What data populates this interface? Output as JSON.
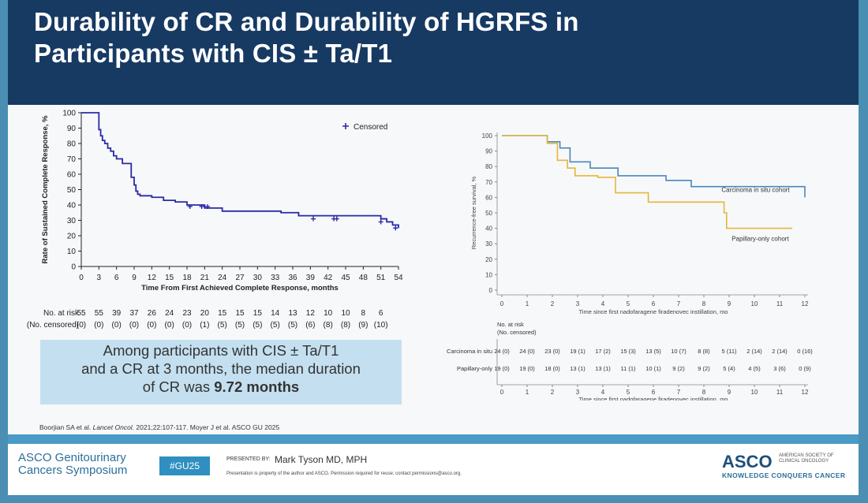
{
  "slide": {
    "title_line1": "Durability of CR and Durability of HGRFS in",
    "title_line2": "Participants with CIS ± Ta/T1",
    "summary": {
      "line1": "Among participants with CIS ± Ta/T1",
      "line2": "and a CR at 3 months, the median duration",
      "line3_prefix": "of CR was",
      "line3_bold": "9.72 months"
    },
    "reference": {
      "part1": "Boorjian SA et al.",
      "journal": "Lancet Oncol.",
      "part2": "2021;22:107-117. Moyer J et al. ASCO GU 2025"
    }
  },
  "footer": {
    "org_line1": "ASCO Genitourinary",
    "org_line2": "Cancers Symposium",
    "hashtag": "#GU25",
    "presented_by": "PRESENTED BY:",
    "presenter": "Mark Tyson MD, MPH",
    "permission": "Presentation is property of the author and ASCO. Permission required for reuse; contact permissions@asco.org.",
    "asco_word": "ASCO",
    "asco_sub": "AMERICAN SOCIETY OF CLINICAL ONCOLOGY",
    "asco_tagline": "KNOWLEDGE CONQUERS CANCER",
    "colors": {
      "header": "#173a63",
      "band": "#4a9bc7",
      "hashtag_bg": "#2e8fc0"
    }
  },
  "chart_data": [
    {
      "type": "line",
      "title": "",
      "xlabel": "Time From First Achieved Complete Response, months",
      "ylabel": "Rate of Sustained Complete Response, %",
      "xlim": [
        0,
        54
      ],
      "ylim": [
        0,
        100
      ],
      "x_ticks": [
        0,
        3,
        6,
        9,
        12,
        15,
        18,
        21,
        24,
        27,
        30,
        33,
        36,
        39,
        42,
        45,
        48,
        51,
        54
      ],
      "y_ticks": [
        0,
        10,
        20,
        30,
        40,
        50,
        60,
        70,
        80,
        90,
        100
      ],
      "legend": {
        "label": "Censored",
        "marker": "+",
        "position": "top-right"
      },
      "series": [
        {
          "color": "#2a2aa8",
          "x": [
            0,
            2,
            3,
            3.3,
            3.6,
            4,
            4.5,
            5,
            5.5,
            6,
            7,
            8.5,
            9,
            9.3,
            9.6,
            10,
            12,
            14,
            16,
            18,
            21,
            24,
            34,
            37,
            51,
            52,
            53,
            54
          ],
          "y": [
            100,
            100,
            89,
            85,
            82,
            80,
            77,
            75,
            72,
            70,
            67,
            58,
            53,
            49,
            47,
            46,
            45,
            43,
            42,
            40,
            38,
            36,
            35,
            33,
            31,
            29,
            27,
            25
          ],
          "censored_x": [
            18.5,
            20.5,
            21.5,
            39.5,
            43,
            43.5,
            51,
            53.5
          ],
          "censored_y": [
            39,
            39,
            39,
            31,
            31,
            31,
            29,
            25
          ]
        }
      ],
      "risk_table": {
        "row_labels": [
          "No. at risk",
          "(No. censored)"
        ],
        "at_risk": [
          "55",
          "55",
          "39",
          "37",
          "26",
          "24",
          "23",
          "20",
          "15",
          "15",
          "15",
          "14",
          "13",
          "12",
          "10",
          "10",
          "8",
          "6"
        ],
        "censored": [
          "(0)",
          "(0)",
          "(0)",
          "(0)",
          "(0)",
          "(0)",
          "(0)",
          "(1)",
          "(5)",
          "(5)",
          "(5)",
          "(5)",
          "(5)",
          "(6)",
          "(8)",
          "(8)",
          "(9)",
          "(10)"
        ]
      }
    },
    {
      "type": "line",
      "title": "",
      "xlabel": "Time since first nadofaragene firadenovec instillation, mo",
      "ylabel": "Recurrence-free survival, %",
      "xlim": [
        0,
        12
      ],
      "ylim": [
        0,
        100
      ],
      "x_ticks": [
        0,
        1,
        2,
        3,
        4,
        5,
        6,
        7,
        8,
        9,
        10,
        11,
        12
      ],
      "y_ticks": [
        0,
        10,
        20,
        30,
        40,
        50,
        60,
        70,
        80,
        90,
        100
      ],
      "series": [
        {
          "name": "Carcinoma in situ cohort",
          "color": "#4a86c0",
          "x": [
            0,
            1.8,
            2.3,
            2.7,
            3.5,
            4.6,
            6.5,
            7.5,
            12
          ],
          "y": [
            100,
            96,
            92,
            83,
            79,
            74,
            71,
            67,
            60
          ]
        },
        {
          "name": "Papillary-only cohort",
          "color": "#e3b73c",
          "x": [
            0,
            1.8,
            2.2,
            2.6,
            2.9,
            3.8,
            4.5,
            5.8,
            8.8,
            8.9,
            11.5
          ],
          "y": [
            100,
            95,
            84,
            79,
            74,
            73,
            63,
            57,
            50,
            40,
            40
          ]
        }
      ],
      "risk_table": {
        "header": [
          "No. at risk",
          "(No. censored)"
        ],
        "rows": [
          {
            "label": "Carcinoma in situ",
            "values": [
              "24 (0)",
              "24 (0)",
              "23 (0)",
              "19 (1)",
              "17 (2)",
              "15 (3)",
              "13 (5)",
              "10 (7)",
              "8 (8)",
              "5 (11)",
              "2 (14)",
              "2 (14)",
              "0 (16)"
            ]
          },
          {
            "label": "Papillary-only",
            "values": [
              "19 (0)",
              "19 (0)",
              "18 (0)",
              "13 (1)",
              "13 (1)",
              "11 (1)",
              "10 (1)",
              "9 (2)",
              "9 (2)",
              "5 (4)",
              "4 (5)",
              "3 (6)",
              "0 (9)"
            ]
          }
        ],
        "x_ticks": [
          0,
          1,
          2,
          3,
          4,
          5,
          6,
          7,
          8,
          9,
          10,
          11,
          12
        ],
        "xlabel": "Time since first nadofaragene firadenovec instillation, mo"
      }
    }
  ]
}
